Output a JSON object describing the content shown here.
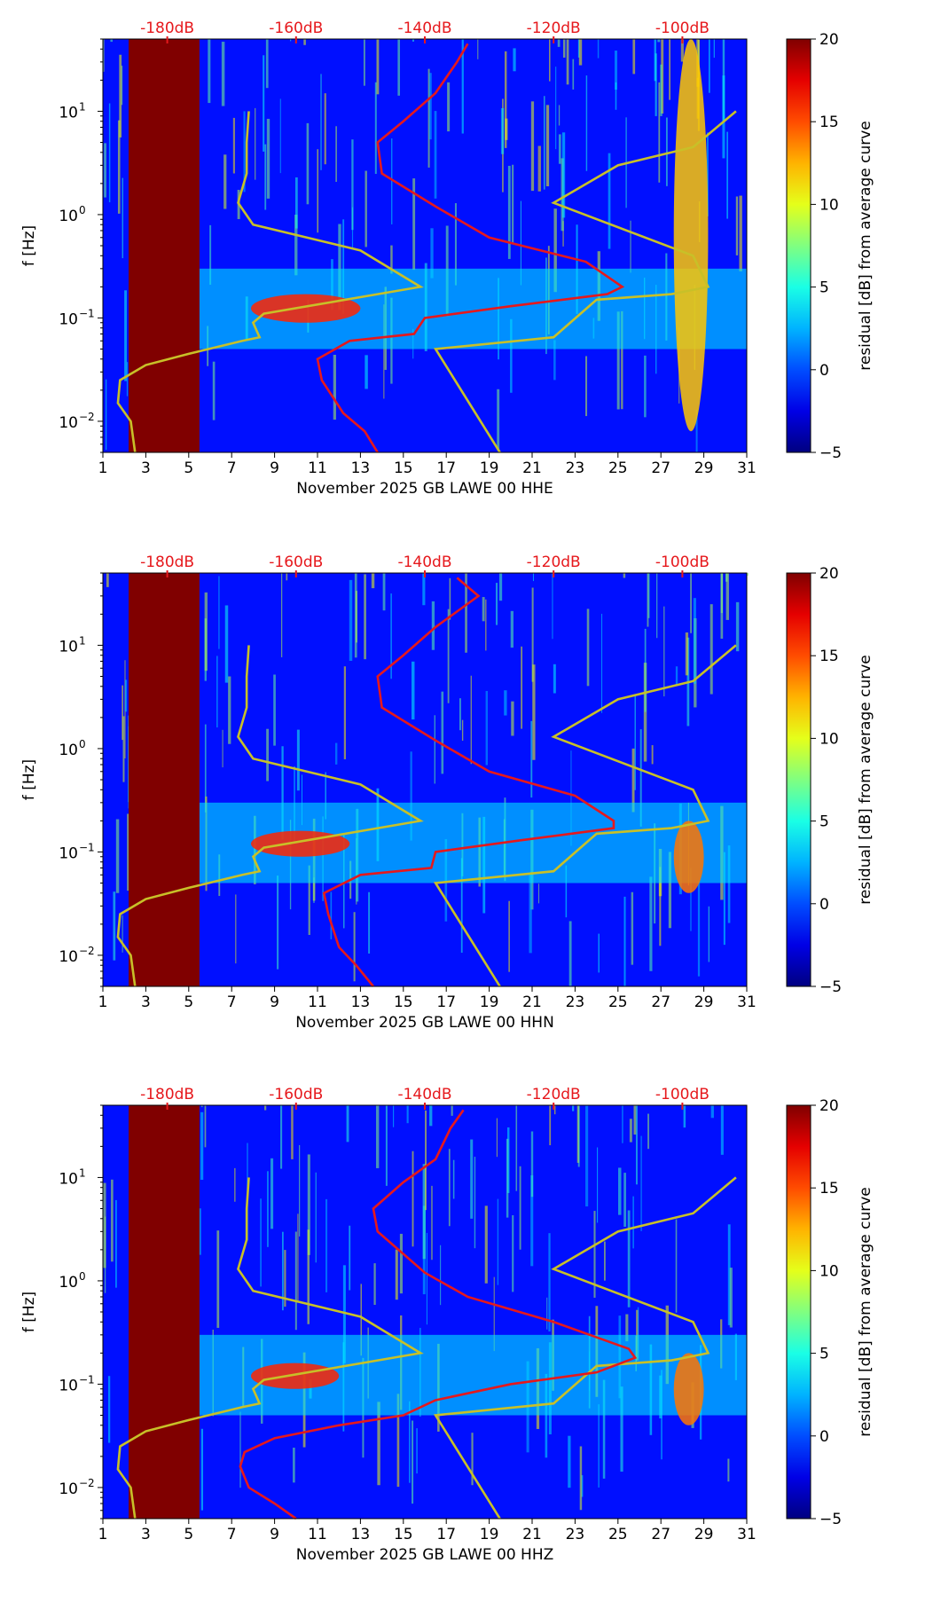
{
  "chart_data": [
    {
      "type": "heatmap",
      "channel": "HHE",
      "xlabel": "November 2025 GB LAWE 00 HHE",
      "ylabel": "f [Hz]",
      "colorbar_label": "residual [dB] from average curve",
      "xlim": [
        1,
        31
      ],
      "ylim_hz": [
        0.005,
        50
      ],
      "x_ticks": [
        "1",
        "3",
        "5",
        "7",
        "9",
        "11",
        "13",
        "15",
        "17",
        "19",
        "21",
        "23",
        "25",
        "27",
        "29",
        "31"
      ],
      "y_ticks": [
        {
          "value": 0.01,
          "base": "10",
          "exp": "−2"
        },
        {
          "value": 0.1,
          "base": "10",
          "exp": "−1"
        },
        {
          "value": 1,
          "base": "10",
          "exp": "0"
        },
        {
          "value": 10,
          "base": "10",
          "exp": "1"
        }
      ],
      "db_ticks": [
        {
          "label": "-180dB",
          "day": 4
        },
        {
          "label": "-160dB",
          "day": 10
        },
        {
          "label": "-140dB",
          "day": 16
        },
        {
          "label": "-120dB",
          "day": 22
        },
        {
          "label": "-100dB",
          "day": 28
        }
      ],
      "colorbar_ticks": [
        "20",
        "15",
        "10",
        "5",
        "0",
        "−5"
      ],
      "clim": [
        -5,
        20
      ],
      "masked_days": [
        2.2,
        5.5
      ],
      "strong_events": [
        {
          "day_start": 27.6,
          "day_end": 29.2,
          "f_low": 0.008,
          "f_high": 50,
          "residual_db": 12
        },
        {
          "day_start": 7.9,
          "day_end": 13.0,
          "f_low": 0.09,
          "f_high": 0.17,
          "residual_db": 16
        }
      ],
      "red_curve": [
        [
          13.8,
          0.005
        ],
        [
          13.2,
          0.008
        ],
        [
          12.2,
          0.012
        ],
        [
          11.2,
          0.025
        ],
        [
          11.0,
          0.04
        ],
        [
          12.5,
          0.06
        ],
        [
          15.5,
          0.07
        ],
        [
          16.0,
          0.1
        ],
        [
          20.0,
          0.13
        ],
        [
          24.5,
          0.17
        ],
        [
          25.2,
          0.2
        ],
        [
          23.5,
          0.35
        ],
        [
          19.0,
          0.6
        ],
        [
          16.5,
          1.2
        ],
        [
          14.0,
          2.5
        ],
        [
          13.8,
          5
        ],
        [
          15.0,
          8
        ],
        [
          16.5,
          15
        ],
        [
          17.5,
          30
        ],
        [
          18.0,
          45
        ]
      ],
      "yellow_curve": [
        [
          2.5,
          0.005
        ],
        [
          2.3,
          0.01
        ],
        [
          1.7,
          0.015
        ],
        [
          1.8,
          0.025
        ],
        [
          3.0,
          0.035
        ],
        [
          5.0,
          0.045
        ],
        [
          7.5,
          0.06
        ],
        [
          8.3,
          0.065
        ],
        [
          8.0,
          0.09
        ],
        [
          8.5,
          0.11
        ],
        [
          15.8,
          0.2
        ],
        [
          13.0,
          0.45
        ],
        [
          8.0,
          0.8
        ],
        [
          7.3,
          1.3
        ],
        [
          7.7,
          2.5
        ],
        [
          7.7,
          5
        ],
        [
          7.8,
          10
        ]
      ],
      "yellow_curve_2": [
        [
          19.5,
          0.005
        ],
        [
          16.5,
          0.05
        ],
        [
          22.0,
          0.065
        ],
        [
          24.0,
          0.15
        ],
        [
          27.5,
          0.17
        ],
        [
          29.2,
          0.2
        ],
        [
          28.5,
          0.4
        ],
        [
          22.0,
          1.3
        ],
        [
          25.0,
          3.0
        ],
        [
          28.5,
          4.5
        ],
        [
          30.5,
          10
        ]
      ]
    },
    {
      "type": "heatmap",
      "channel": "HHN",
      "xlabel": "November 2025 GB LAWE 00 HHN",
      "ylabel": "f [Hz]",
      "colorbar_label": "residual [dB] from average curve",
      "xlim": [
        1,
        31
      ],
      "ylim_hz": [
        0.005,
        50
      ],
      "x_ticks": [
        "1",
        "3",
        "5",
        "7",
        "9",
        "11",
        "13",
        "15",
        "17",
        "19",
        "21",
        "23",
        "25",
        "27",
        "29",
        "31"
      ],
      "y_ticks": [
        {
          "value": 0.01,
          "base": "10",
          "exp": "−2"
        },
        {
          "value": 0.1,
          "base": "10",
          "exp": "−1"
        },
        {
          "value": 1,
          "base": "10",
          "exp": "0"
        },
        {
          "value": 10,
          "base": "10",
          "exp": "1"
        }
      ],
      "db_ticks": [
        {
          "label": "-180dB",
          "day": 4
        },
        {
          "label": "-160dB",
          "day": 10
        },
        {
          "label": "-140dB",
          "day": 16
        },
        {
          "label": "-120dB",
          "day": 22
        },
        {
          "label": "-100dB",
          "day": 28
        }
      ],
      "colorbar_ticks": [
        "20",
        "15",
        "10",
        "5",
        "0",
        "−5"
      ],
      "clim": [
        -5,
        20
      ],
      "masked_days": [
        2.2,
        5.5
      ],
      "strong_events": [
        {
          "day_start": 27.6,
          "day_end": 29.0,
          "f_low": 0.04,
          "f_high": 0.2,
          "residual_db": 14
        },
        {
          "day_start": 7.9,
          "day_end": 12.5,
          "f_low": 0.09,
          "f_high": 0.16,
          "residual_db": 16
        }
      ],
      "red_curve": [
        [
          13.6,
          0.005
        ],
        [
          12.8,
          0.008
        ],
        [
          12.0,
          0.012
        ],
        [
          11.5,
          0.025
        ],
        [
          11.3,
          0.04
        ],
        [
          13.0,
          0.06
        ],
        [
          16.3,
          0.07
        ],
        [
          16.5,
          0.1
        ],
        [
          20.5,
          0.13
        ],
        [
          24.8,
          0.17
        ],
        [
          24.8,
          0.2
        ],
        [
          23.0,
          0.35
        ],
        [
          19.0,
          0.6
        ],
        [
          16.5,
          1.2
        ],
        [
          14.0,
          2.5
        ],
        [
          13.8,
          5
        ],
        [
          15.0,
          8
        ],
        [
          16.5,
          15
        ],
        [
          18.5,
          30
        ],
        [
          17.5,
          45
        ]
      ],
      "yellow_curve": [
        [
          2.5,
          0.005
        ],
        [
          2.3,
          0.01
        ],
        [
          1.7,
          0.015
        ],
        [
          1.8,
          0.025
        ],
        [
          3.0,
          0.035
        ],
        [
          5.0,
          0.045
        ],
        [
          7.5,
          0.06
        ],
        [
          8.3,
          0.065
        ],
        [
          8.0,
          0.09
        ],
        [
          8.5,
          0.11
        ],
        [
          15.8,
          0.2
        ],
        [
          13.0,
          0.45
        ],
        [
          8.0,
          0.8
        ],
        [
          7.3,
          1.3
        ],
        [
          7.7,
          2.5
        ],
        [
          7.7,
          5
        ],
        [
          7.8,
          10
        ]
      ],
      "yellow_curve_2": [
        [
          19.5,
          0.005
        ],
        [
          16.5,
          0.05
        ],
        [
          22.0,
          0.065
        ],
        [
          24.0,
          0.15
        ],
        [
          27.5,
          0.17
        ],
        [
          29.2,
          0.2
        ],
        [
          28.5,
          0.4
        ],
        [
          22.0,
          1.3
        ],
        [
          25.0,
          3.0
        ],
        [
          28.5,
          4.5
        ],
        [
          30.5,
          10
        ]
      ]
    },
    {
      "type": "heatmap",
      "channel": "HHZ",
      "xlabel": "November 2025 GB LAWE 00 HHZ",
      "ylabel": "f [Hz]",
      "colorbar_label": "residual [dB] from average curve",
      "xlim": [
        1,
        31
      ],
      "ylim_hz": [
        0.005,
        50
      ],
      "x_ticks": [
        "1",
        "3",
        "5",
        "7",
        "9",
        "11",
        "13",
        "15",
        "17",
        "19",
        "21",
        "23",
        "25",
        "27",
        "29",
        "31"
      ],
      "y_ticks": [
        {
          "value": 0.01,
          "base": "10",
          "exp": "−2"
        },
        {
          "value": 0.1,
          "base": "10",
          "exp": "−1"
        },
        {
          "value": 1,
          "base": "10",
          "exp": "0"
        },
        {
          "value": 10,
          "base": "10",
          "exp": "1"
        }
      ],
      "db_ticks": [
        {
          "label": "-180dB",
          "day": 4
        },
        {
          "label": "-160dB",
          "day": 10
        },
        {
          "label": "-140dB",
          "day": 16
        },
        {
          "label": "-120dB",
          "day": 22
        },
        {
          "label": "-100dB",
          "day": 28
        }
      ],
      "colorbar_ticks": [
        "20",
        "15",
        "10",
        "5",
        "0",
        "−5"
      ],
      "clim": [
        -5,
        20
      ],
      "masked_days": [
        2.2,
        5.5
      ],
      "strong_events": [
        {
          "day_start": 27.6,
          "day_end": 29.0,
          "f_low": 0.04,
          "f_high": 0.2,
          "residual_db": 14
        },
        {
          "day_start": 7.9,
          "day_end": 12.0,
          "f_low": 0.09,
          "f_high": 0.16,
          "residual_db": 16
        }
      ],
      "red_curve": [
        [
          10.0,
          0.005
        ],
        [
          9.0,
          0.007
        ],
        [
          7.8,
          0.01
        ],
        [
          7.4,
          0.016
        ],
        [
          7.6,
          0.022
        ],
        [
          9.0,
          0.03
        ],
        [
          12.0,
          0.04
        ],
        [
          15.0,
          0.05
        ],
        [
          16.5,
          0.07
        ],
        [
          20.0,
          0.1
        ],
        [
          24.0,
          0.13
        ],
        [
          25.8,
          0.18
        ],
        [
          25.5,
          0.22
        ],
        [
          22.0,
          0.4
        ],
        [
          18.0,
          0.7
        ],
        [
          16.0,
          1.2
        ],
        [
          13.8,
          3.0
        ],
        [
          13.6,
          5
        ],
        [
          15.0,
          9
        ],
        [
          16.5,
          15
        ],
        [
          17.2,
          30
        ],
        [
          17.8,
          45
        ]
      ],
      "yellow_curve": [
        [
          2.5,
          0.005
        ],
        [
          2.3,
          0.01
        ],
        [
          1.7,
          0.015
        ],
        [
          1.8,
          0.025
        ],
        [
          3.0,
          0.035
        ],
        [
          5.0,
          0.045
        ],
        [
          7.5,
          0.06
        ],
        [
          8.3,
          0.065
        ],
        [
          8.0,
          0.09
        ],
        [
          8.5,
          0.11
        ],
        [
          15.8,
          0.2
        ],
        [
          13.0,
          0.45
        ],
        [
          8.0,
          0.8
        ],
        [
          7.3,
          1.3
        ],
        [
          7.7,
          2.5
        ],
        [
          7.7,
          5
        ],
        [
          7.8,
          10
        ]
      ],
      "yellow_curve_2": [
        [
          19.5,
          0.005
        ],
        [
          16.5,
          0.05
        ],
        [
          22.0,
          0.065
        ],
        [
          24.0,
          0.15
        ],
        [
          27.5,
          0.17
        ],
        [
          29.2,
          0.2
        ],
        [
          28.5,
          0.4
        ],
        [
          22.0,
          1.3
        ],
        [
          25.0,
          3.0
        ],
        [
          28.5,
          4.5
        ],
        [
          30.5,
          10
        ]
      ]
    }
  ]
}
